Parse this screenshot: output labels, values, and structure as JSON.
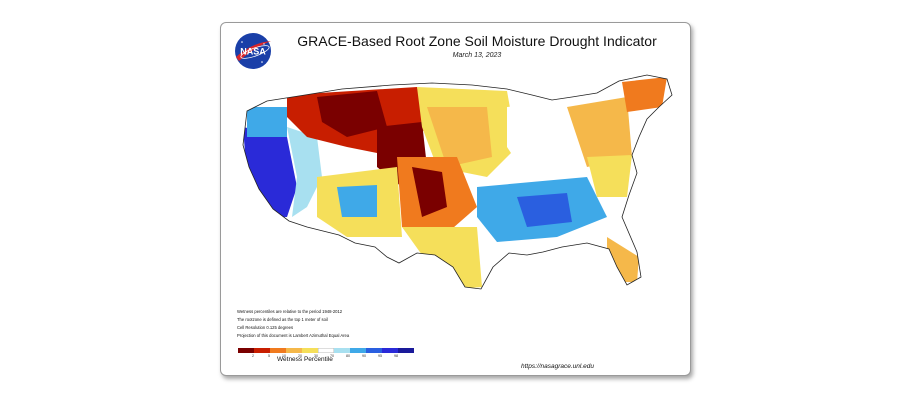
{
  "map": {
    "title": "GRACE-Based Root Zone Soil  Moisture Drought Indicator",
    "date": "March 13, 2023",
    "logo_text": "NASA",
    "notes": [
      "Wetness percentiles are relative to the period 1948-2012",
      "The rootzone is defined as the top 1 meter of soil",
      "Cell Resolution 0.125 degrees",
      "Projection of this document is Lambert Azimuthal Equal Area"
    ],
    "legend": {
      "label": "Wetness Percentile",
      "ticks": [
        "2",
        "5",
        "10",
        "20",
        "30",
        "70",
        "80",
        "90",
        "95",
        "98"
      ],
      "colors": [
        "#7a0000",
        "#c81e00",
        "#f07a1e",
        "#f5b84a",
        "#f5df5a",
        "#ffffff",
        "#a8e0f0",
        "#3fa9e8",
        "#2a5fe0",
        "#2a2ad8",
        "#1a1a9a"
      ]
    },
    "url": "https://nasagrace.unl.edu"
  }
}
